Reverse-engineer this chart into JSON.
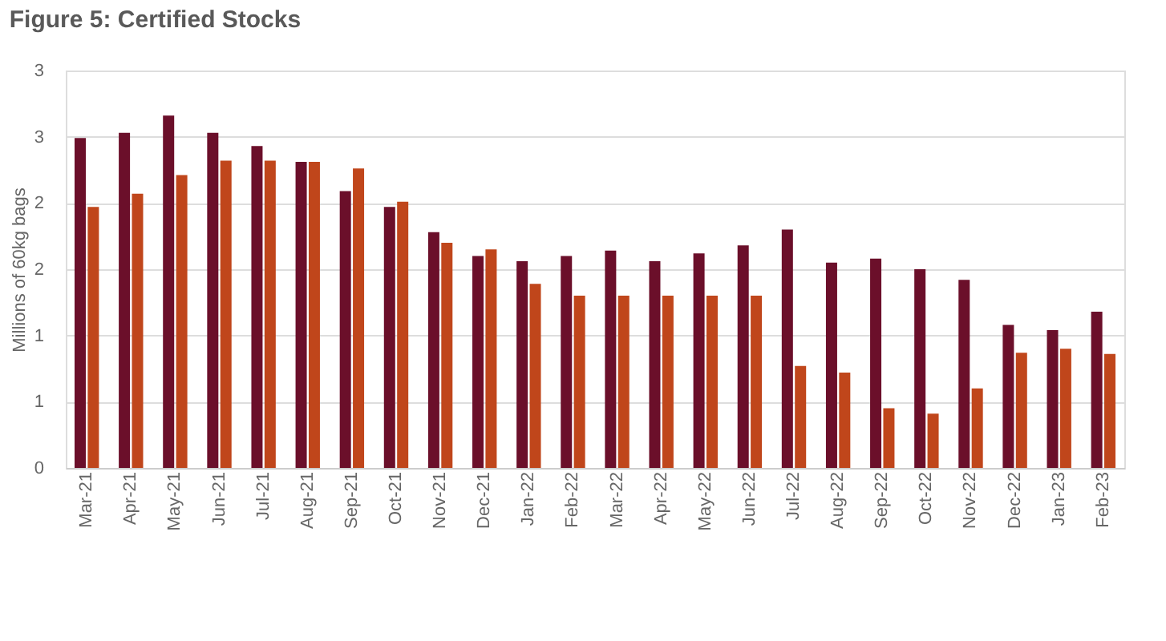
{
  "chart_data": {
    "type": "bar",
    "title": "Figure 5: Certified Stocks",
    "ylabel": "Millions of 60kg bags",
    "categories": [
      "Mar-21",
      "Apr-21",
      "May-21",
      "Jun-21",
      "Jul-21",
      "Aug-21",
      "Sep-21",
      "Oct-21",
      "Nov-21",
      "Dec-21",
      "Jan-22",
      "Feb-22",
      "Mar-22",
      "Apr-22",
      "May-22",
      "Jun-22",
      "Jul-22",
      "Aug-22",
      "Sep-22",
      "Oct-22",
      "Nov-22",
      "Dec-22",
      "Jan-23",
      "Feb-23"
    ],
    "series": [
      {
        "color": "#6b0f2a",
        "values": [
          2.49,
          2.53,
          2.66,
          2.53,
          2.43,
          2.31,
          2.09,
          1.97,
          1.78,
          1.6,
          1.56,
          1.6,
          1.64,
          1.56,
          1.62,
          1.68,
          1.8,
          1.55,
          1.58,
          1.5,
          1.42,
          1.08,
          1.04,
          1.18
        ]
      },
      {
        "color": "#c0461b",
        "values": [
          1.97,
          2.07,
          2.21,
          2.32,
          2.32,
          2.31,
          2.26,
          2.01,
          1.7,
          1.65,
          1.39,
          1.3,
          1.3,
          1.3,
          1.3,
          1.3,
          0.77,
          0.72,
          0.45,
          0.41,
          0.6,
          0.87,
          0.9,
          0.86
        ]
      }
    ],
    "ylim": [
      0,
      3
    ],
    "yticks": [
      0,
      {
        "value": 0.5,
        "label": "1"
      },
      1,
      {
        "value": 1.5,
        "label": "2"
      },
      2,
      {
        "value": 2.5,
        "label": "3"
      },
      3
    ],
    "grid": "y",
    "legend": false
  }
}
